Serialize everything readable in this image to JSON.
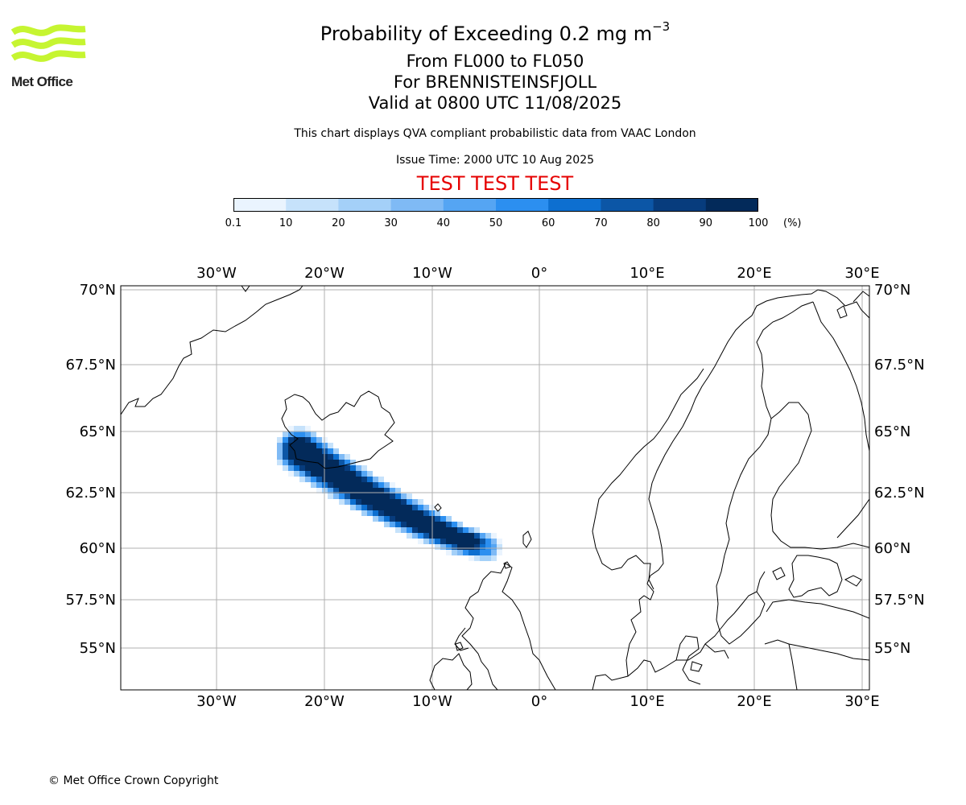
{
  "logo": {
    "text": "Met Office",
    "color": "#c6f531"
  },
  "header": {
    "title_prefix": "Probability of Exceeding 0.2 mg m",
    "title_sup": "−3",
    "level_range": "From FL000 to FL050",
    "volcano": "For BRENNISTEINSFJOLL",
    "valid_time": "Valid at 0800 UTC 11/08/2025",
    "note": "This chart displays QVA compliant probabilistic data from VAAC London",
    "issue_time": "Issue Time: 2000 UTC 10 Aug 2025",
    "test_banner": "TEST TEST TEST",
    "test_color": "#e60000"
  },
  "colorbar": {
    "ticks": [
      "0.1",
      "10",
      "20",
      "30",
      "40",
      "50",
      "60",
      "70",
      "80",
      "90",
      "100"
    ],
    "unit": "(%)",
    "colors": [
      "#eaf4fe",
      "#c6e2fb",
      "#a4d0f8",
      "#7fbaf5",
      "#55a5f3",
      "#2c8ff0",
      "#0d6fd0",
      "#0c56a6",
      "#073c7d",
      "#032a5a"
    ]
  },
  "map": {
    "lon_ticks": [
      "30°W",
      "20°W",
      "10°W",
      "0°",
      "10°E",
      "20°E",
      "30°E"
    ],
    "lat_ticks": [
      "70°N",
      "67.5°N",
      "65°N",
      "62.5°N",
      "60°N",
      "57.5°N",
      "55°N"
    ],
    "plume_peak_probability_pct": 100
  },
  "footer": {
    "copyright": "© Met Office Crown Copyright"
  }
}
